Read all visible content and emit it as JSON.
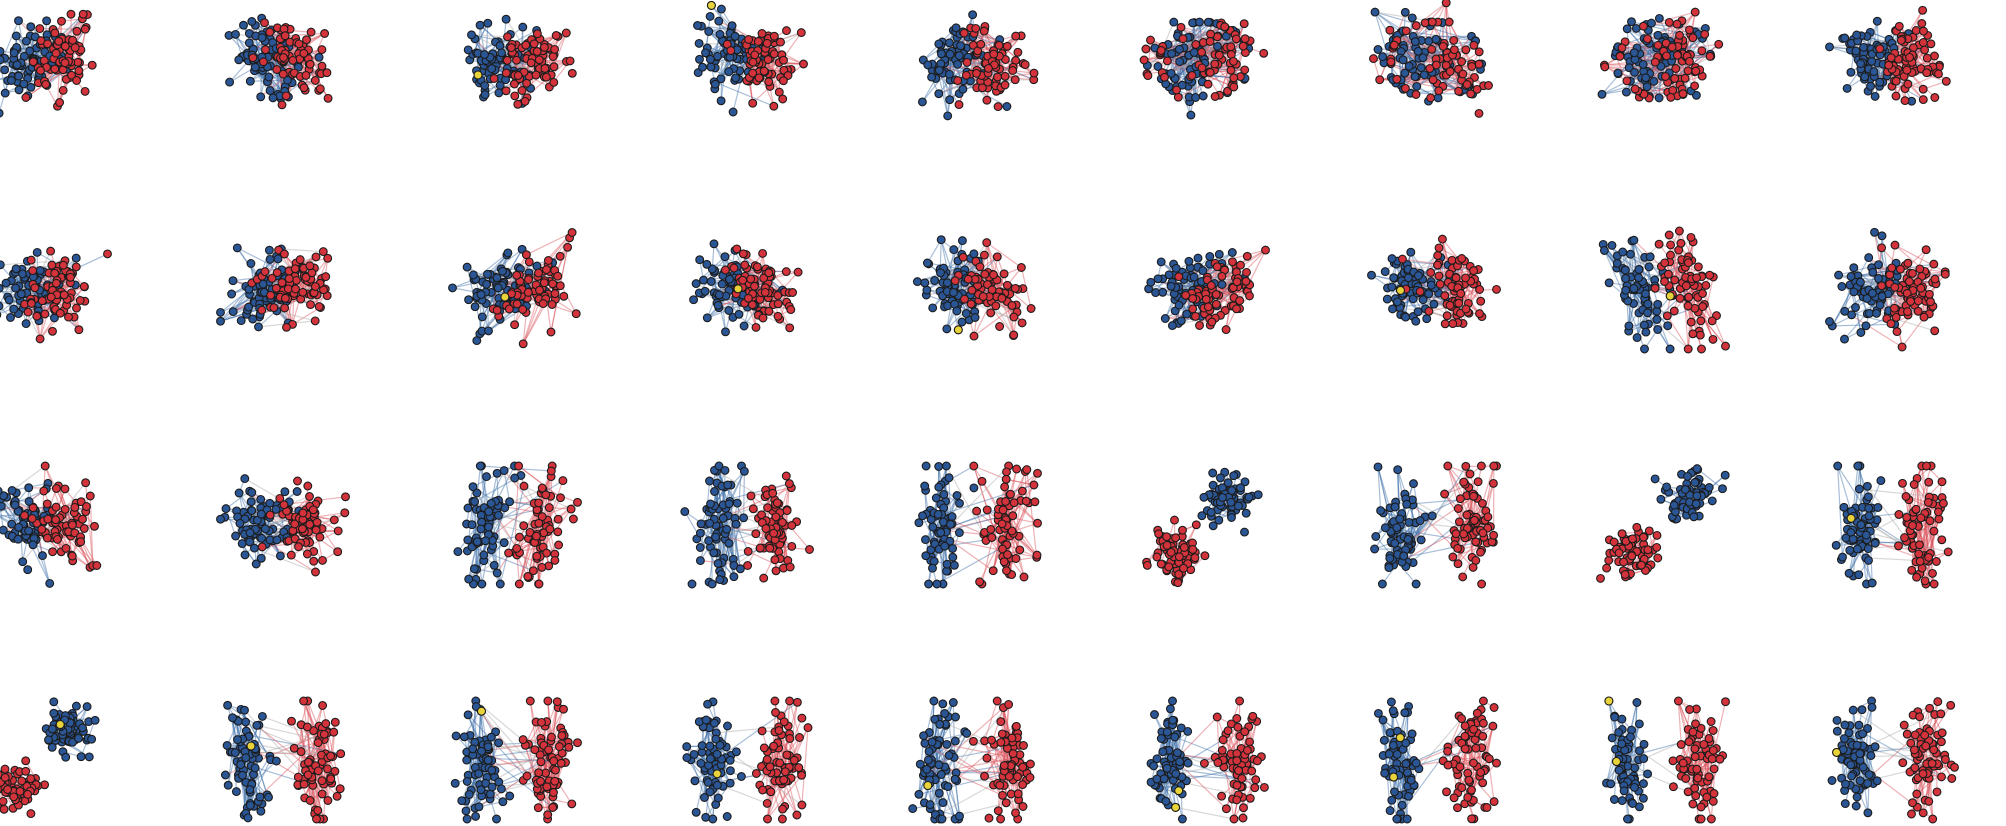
{
  "figure": {
    "grid": {
      "rows": 4,
      "cols": 9
    },
    "colors": {
      "group_a": "#2a5696",
      "group_b": "#d5333b",
      "highlight": "#e8d33a",
      "edge_a": "#3f6ea8",
      "edge_b": "#d9535a",
      "edge_between": "#a9a9a9",
      "node_stroke": "#1c1c1c"
    },
    "nodes_per_group": 70,
    "panels": [
      {
        "layout": "overlap",
        "sep": 0.5,
        "tilt": 0.35,
        "mix": 0.45,
        "cross": 0.3,
        "highlight": 0
      },
      {
        "layout": "overlap",
        "sep": 0.55,
        "tilt": -0.55,
        "mix": 0.4,
        "cross": 0.25,
        "highlight": 0
      },
      {
        "layout": "overlap",
        "sep": 0.55,
        "tilt": 0.6,
        "mix": 0.35,
        "cross": 0.25,
        "highlight": 1
      },
      {
        "layout": "overlap",
        "sep": 0.6,
        "tilt": 0.1,
        "mix": 0.35,
        "cross": 0.25,
        "highlight": 1
      },
      {
        "layout": "overlap",
        "sep": 0.55,
        "tilt": 0.2,
        "mix": 0.4,
        "cross": 0.3,
        "highlight": 0
      },
      {
        "layout": "ring",
        "sep": 0.5,
        "tilt": 0.3,
        "mix": 0.4,
        "cross": 0.3,
        "highlight": 0
      },
      {
        "layout": "ring",
        "sep": 0.55,
        "tilt": -0.3,
        "mix": 0.4,
        "cross": 0.3,
        "highlight": 0
      },
      {
        "layout": "ring",
        "sep": 0.5,
        "tilt": 0.5,
        "mix": 0.45,
        "cross": 0.3,
        "highlight": 0
      },
      {
        "layout": "overlap",
        "sep": 0.6,
        "tilt": 0.2,
        "mix": 0.35,
        "cross": 0.25,
        "highlight": 0
      },
      {
        "layout": "overlap",
        "sep": 0.5,
        "tilt": 0.7,
        "mix": 0.45,
        "cross": 0.3,
        "highlight": 0
      },
      {
        "layout": "overlap",
        "sep": 0.55,
        "tilt": 0.8,
        "mix": 0.4,
        "cross": 0.3,
        "highlight": 0
      },
      {
        "layout": "overlap",
        "sep": 0.55,
        "tilt": 0.85,
        "mix": 0.4,
        "cross": 0.3,
        "highlight": 1
      },
      {
        "layout": "overlap",
        "sep": 0.5,
        "tilt": -0.6,
        "mix": 0.45,
        "cross": 0.3,
        "highlight": 1
      },
      {
        "layout": "overlap",
        "sep": 0.5,
        "tilt": -0.7,
        "mix": 0.4,
        "cross": 0.3,
        "highlight": 1
      },
      {
        "layout": "overlap",
        "sep": 0.5,
        "tilt": 0.9,
        "mix": 0.45,
        "cross": 0.3,
        "highlight": 0
      },
      {
        "layout": "overlap",
        "sep": 0.65,
        "tilt": -0.3,
        "mix": 0.25,
        "cross": 0.25,
        "highlight": 1
      },
      {
        "layout": "split",
        "sep": 0.75,
        "tilt": -0.35,
        "mix": 0.1,
        "cross": 0.15,
        "highlight": 1
      },
      {
        "layout": "overlap",
        "sep": 0.65,
        "tilt": 0.1,
        "mix": 0.25,
        "cross": 0.2,
        "highlight": 0
      },
      {
        "layout": "overlap",
        "sep": 0.6,
        "tilt": -0.2,
        "mix": 0.3,
        "cross": 0.25,
        "highlight": 0
      },
      {
        "layout": "overlap",
        "sep": 0.65,
        "tilt": 0.2,
        "mix": 0.25,
        "cross": 0.25,
        "highlight": 0
      },
      {
        "layout": "split",
        "sep": 0.8,
        "tilt": 0.2,
        "mix": 0.1,
        "cross": 0.18,
        "highlight": 0
      },
      {
        "layout": "split",
        "sep": 0.8,
        "tilt": 0.0,
        "mix": 0.05,
        "cross": 0.15,
        "highlight": 0
      },
      {
        "layout": "split",
        "sep": 0.95,
        "tilt": 0.0,
        "mix": 0.02,
        "cross": 0.12,
        "highlight": 0
      },
      {
        "layout": "separate",
        "sep": 1.0,
        "tilt": 0.0,
        "mix": 0.0,
        "cross": 0.0,
        "highlight": 0
      },
      {
        "layout": "split",
        "sep": 1.0,
        "tilt": 0.0,
        "mix": 0.0,
        "cross": 0.1,
        "highlight": 0
      },
      {
        "layout": "separate",
        "sep": 1.0,
        "tilt": 0.0,
        "mix": 0.0,
        "cross": 0.0,
        "highlight": 0
      },
      {
        "layout": "split",
        "sep": 0.95,
        "tilt": 0.0,
        "mix": 0.02,
        "cross": 0.12,
        "highlight": 1
      },
      {
        "layout": "separate",
        "sep": 1.0,
        "tilt": 0.0,
        "mix": 0.0,
        "cross": 0.0,
        "highlight": 1
      },
      {
        "layout": "split",
        "sep": 1.0,
        "tilt": 0.0,
        "mix": 0.0,
        "cross": 0.12,
        "highlight": 1
      },
      {
        "layout": "split",
        "sep": 1.0,
        "tilt": 0.0,
        "mix": 0.0,
        "cross": 0.18,
        "highlight": 1
      },
      {
        "layout": "split",
        "sep": 1.0,
        "tilt": 0.0,
        "mix": 0.0,
        "cross": 0.06,
        "highlight": 1
      },
      {
        "layout": "split",
        "sep": 1.0,
        "tilt": 0.0,
        "mix": 0.0,
        "cross": 0.16,
        "highlight": 1
      },
      {
        "layout": "split",
        "sep": 1.0,
        "tilt": 0.0,
        "mix": 0.0,
        "cross": 0.12,
        "highlight": 2
      },
      {
        "layout": "split",
        "sep": 1.0,
        "tilt": 0.0,
        "mix": 0.0,
        "cross": 0.05,
        "highlight": 2
      },
      {
        "layout": "split",
        "sep": 1.0,
        "tilt": 0.0,
        "mix": 0.0,
        "cross": 0.03,
        "highlight": 2
      },
      {
        "layout": "split",
        "sep": 1.0,
        "tilt": 0.0,
        "mix": 0.0,
        "cross": 0.08,
        "highlight": 1
      }
    ]
  }
}
